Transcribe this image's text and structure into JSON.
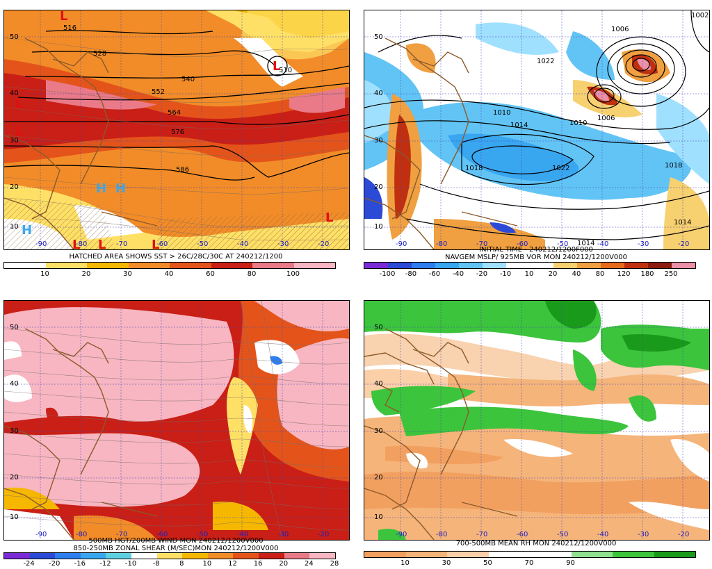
{
  "panels": {
    "p1": {
      "caption": "HATCHED AREA SHOWS SST > 26C/28C/30C AT 240212/1200",
      "colorbar": {
        "colors": [
          "#ffffff",
          "#ffe066",
          "#f5b700",
          "#f28c28",
          "#e4541a",
          "#c91f16",
          "#ea7a88",
          "#f7b6c1"
        ],
        "labels": [
          "10",
          "20",
          "30",
          "40",
          "60",
          "80",
          "100"
        ]
      },
      "contour_labels": [
        "516",
        "528",
        "540",
        "552",
        "564",
        "576",
        "586",
        "510"
      ],
      "lat_labels": [
        "50",
        "40",
        "30",
        "20",
        "10"
      ],
      "lon_labels": [
        "-90",
        "-80",
        "-70",
        "-60",
        "-50",
        "-40",
        "-30",
        "-20"
      ]
    },
    "p2": {
      "caption1": "INITIAL TIME - 240212/1200F000",
      "caption2": "NAVGEM MSLP/ 925MB VOR MON 240212/1200V000",
      "colorbar": {
        "colors": [
          "#7a2bd6",
          "#2b4ad6",
          "#2f7ef0",
          "#39a6f0",
          "#62c4f5",
          "#a0e0ff",
          "#ffffff",
          "#ffffff",
          "#f7d070",
          "#f0a040",
          "#e66a1a",
          "#c03010",
          "#8b1a10",
          "#ea90a8"
        ],
        "labels": [
          "-100",
          "-80",
          "-60",
          "-40",
          "-20",
          "-10",
          "10",
          "20",
          "40",
          "80",
          "120",
          "180",
          "250"
        ]
      },
      "contour_labels": [
        "1006",
        "1002",
        "1010",
        "1014",
        "1018",
        "1022",
        "1010",
        "1018",
        "1014",
        "1014",
        "1006",
        "1022"
      ],
      "lat_labels": [
        "50",
        "40",
        "30",
        "20",
        "10"
      ],
      "lon_labels": [
        "-90",
        "-80",
        "-70",
        "-60",
        "-50",
        "-40",
        "-30",
        "-20"
      ]
    },
    "p3": {
      "caption1": "500MB HGT/200MB WIND MON 240212/1200V000",
      "caption2": "850-250MB ZONAL SHEAR (M/SEC)MON 240212/1200V000",
      "colorbar": {
        "colors": [
          "#7a2bd6",
          "#2b4ad6",
          "#2f7ef0",
          "#39a6f0",
          "#5ed0e0",
          "#ffffff",
          "#ffe066",
          "#f5b700",
          "#f28c28",
          "#e4541a",
          "#c91f16",
          "#ea7a88",
          "#f7b6c1"
        ],
        "labels": [
          "-24",
          "-20",
          "-16",
          "-12",
          "-10",
          "-8",
          "8",
          "10",
          "12",
          "16",
          "20",
          "24",
          "28"
        ]
      },
      "lat_labels": [
        "50",
        "40",
        "30",
        "20",
        "10"
      ],
      "lon_labels": [
        "-90",
        "-80",
        "-70",
        "-60",
        "-50",
        "-40",
        "-30",
        "-20"
      ]
    },
    "p4": {
      "caption": "700-500MB MEAN RH MON 240212/1200V000",
      "colorbar": {
        "colors": [
          "#f2a060",
          "#f5b47a",
          "#fbd0a8",
          "#ffffff",
          "#ffffff",
          "#8fe08f",
          "#3cc43c",
          "#1a9a1a"
        ],
        "labels": [
          "10",
          "30",
          "50",
          "70",
          "90"
        ]
      },
      "lat_labels": [
        "50",
        "40",
        "30",
        "20",
        "10"
      ],
      "lon_labels": [
        "-90",
        "-80",
        "-70",
        "-60",
        "-50",
        "-40",
        "-30",
        "-20"
      ]
    }
  }
}
